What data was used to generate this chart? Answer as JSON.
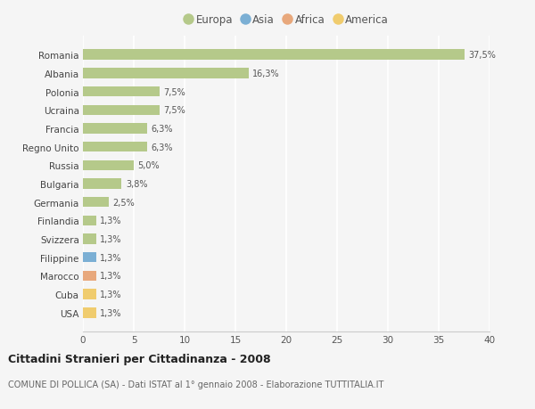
{
  "countries": [
    "Romania",
    "Albania",
    "Polonia",
    "Ucraina",
    "Francia",
    "Regno Unito",
    "Russia",
    "Bulgaria",
    "Germania",
    "Finlandia",
    "Svizzera",
    "Filippine",
    "Marocco",
    "Cuba",
    "USA"
  ],
  "values": [
    37.5,
    16.3,
    7.5,
    7.5,
    6.3,
    6.3,
    5.0,
    3.8,
    2.5,
    1.3,
    1.3,
    1.3,
    1.3,
    1.3,
    1.3
  ],
  "labels": [
    "37,5%",
    "16,3%",
    "7,5%",
    "7,5%",
    "6,3%",
    "6,3%",
    "5,0%",
    "3,8%",
    "2,5%",
    "1,3%",
    "1,3%",
    "1,3%",
    "1,3%",
    "1,3%",
    "1,3%"
  ],
  "continents": [
    "Europa",
    "Europa",
    "Europa",
    "Europa",
    "Europa",
    "Europa",
    "Europa",
    "Europa",
    "Europa",
    "Europa",
    "Europa",
    "Asia",
    "Africa",
    "America",
    "America"
  ],
  "colors": {
    "Europa": "#b5c98a",
    "Asia": "#7bafd4",
    "Africa": "#e8a87c",
    "America": "#f0cc6e"
  },
  "legend_order": [
    "Europa",
    "Asia",
    "Africa",
    "America"
  ],
  "title": "Cittadini Stranieri per Cittadinanza - 2008",
  "subtitle": "COMUNE DI POLLICA (SA) - Dati ISTAT al 1° gennaio 2008 - Elaborazione TUTTITALIA.IT",
  "xlim": [
    0,
    40
  ],
  "xticks": [
    0,
    5,
    10,
    15,
    20,
    25,
    30,
    35,
    40
  ],
  "background_color": "#f5f5f5",
  "grid_color": "#ffffff",
  "bar_height": 0.55
}
